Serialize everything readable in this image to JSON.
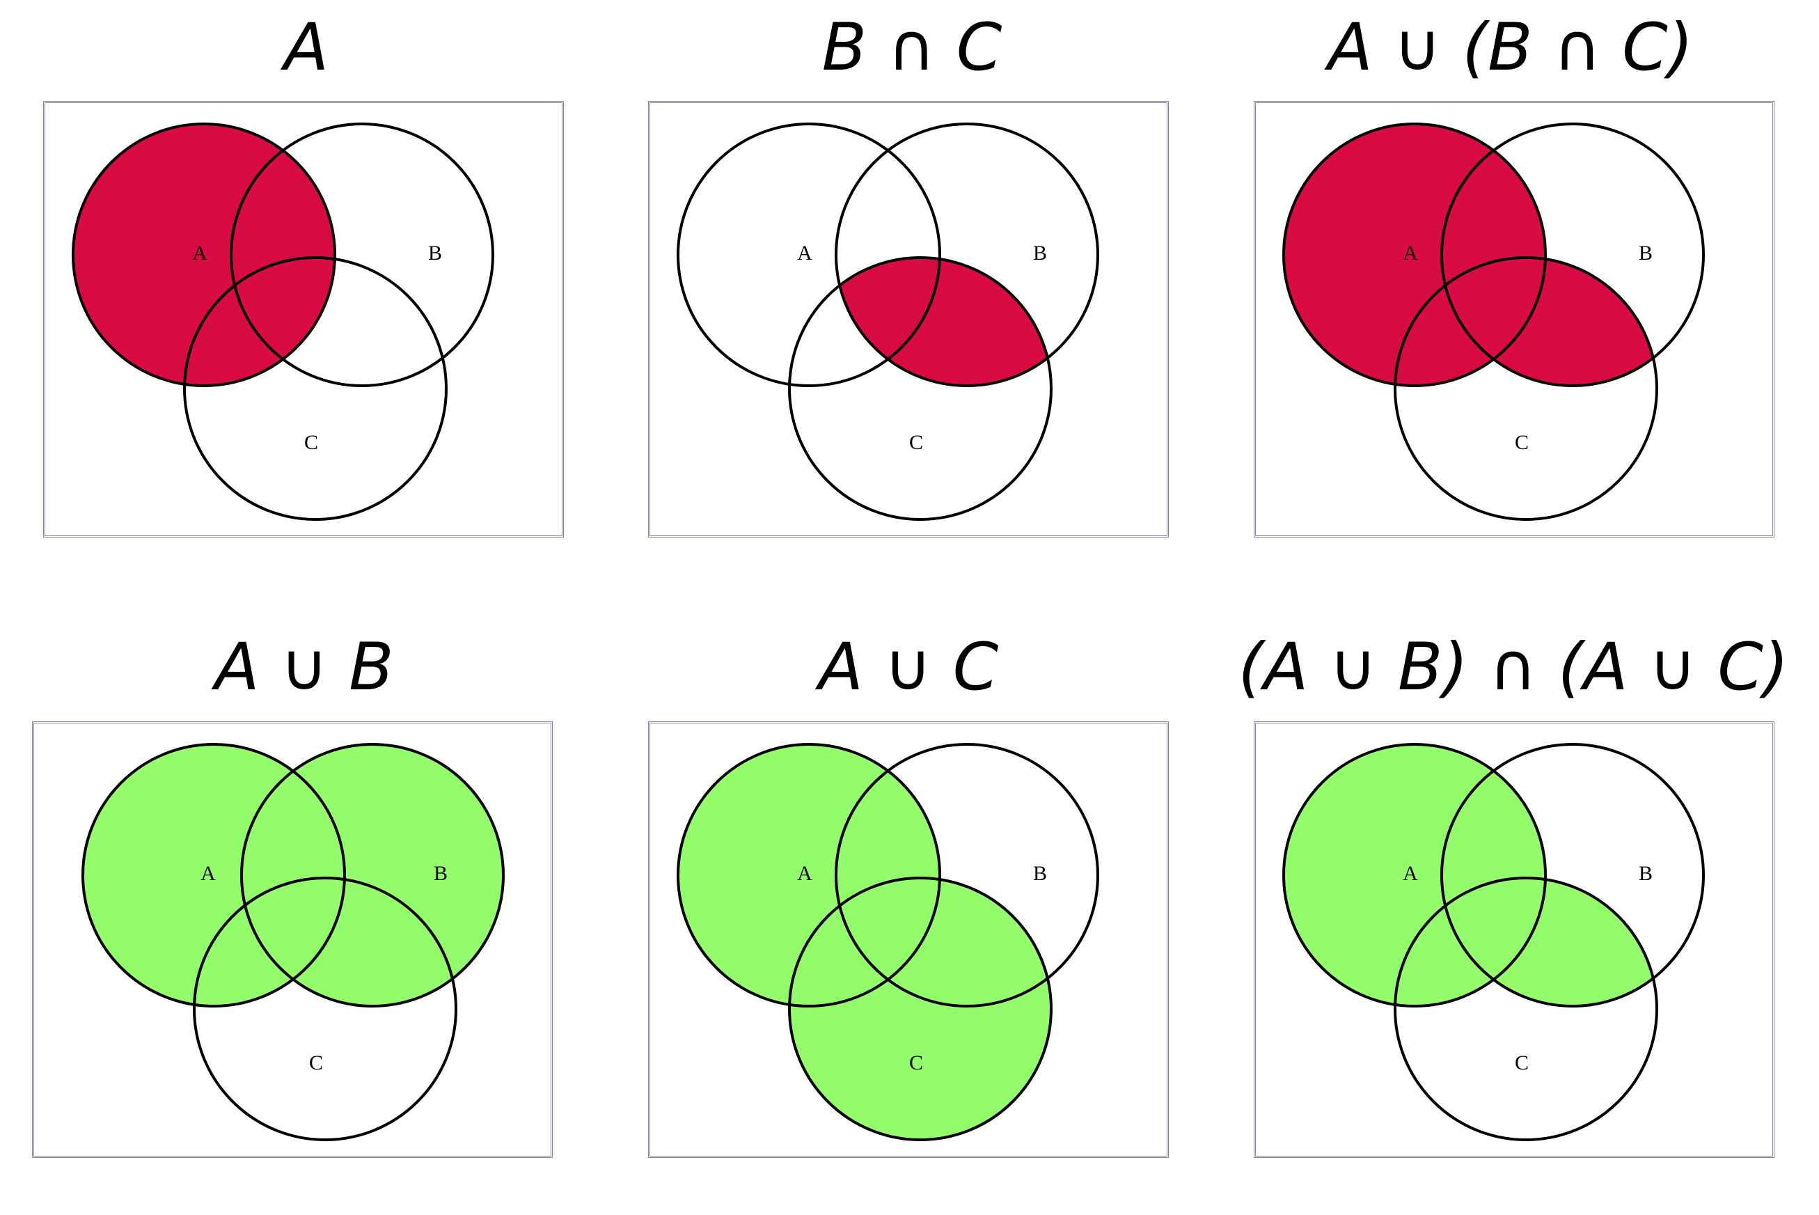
{
  "colors": {
    "red": "#d90b43",
    "green": "#94fd6c",
    "frame": "#8f82b0",
    "stroke": "#000000"
  },
  "circle_labels": {
    "a": "A",
    "b": "B",
    "c": "C"
  },
  "panels": [
    {
      "title": "A",
      "shaded": [
        "A"
      ],
      "color": "red"
    },
    {
      "title": "B ∩ C",
      "shaded": [
        "B∩C"
      ],
      "color": "red"
    },
    {
      "title": "A ∪ (B ∩ C)",
      "shaded": [
        "A",
        "B∩C"
      ],
      "color": "red"
    },
    {
      "title": "A ∪ B",
      "shaded": [
        "A",
        "B"
      ],
      "color": "green"
    },
    {
      "title": "A ∪ C",
      "shaded": [
        "A",
        "C"
      ],
      "color": "green"
    },
    {
      "title": "(A ∪ B) ∩ (A ∪ C)",
      "shaded": [
        "A",
        "B∩C"
      ],
      "color": "green"
    }
  ]
}
